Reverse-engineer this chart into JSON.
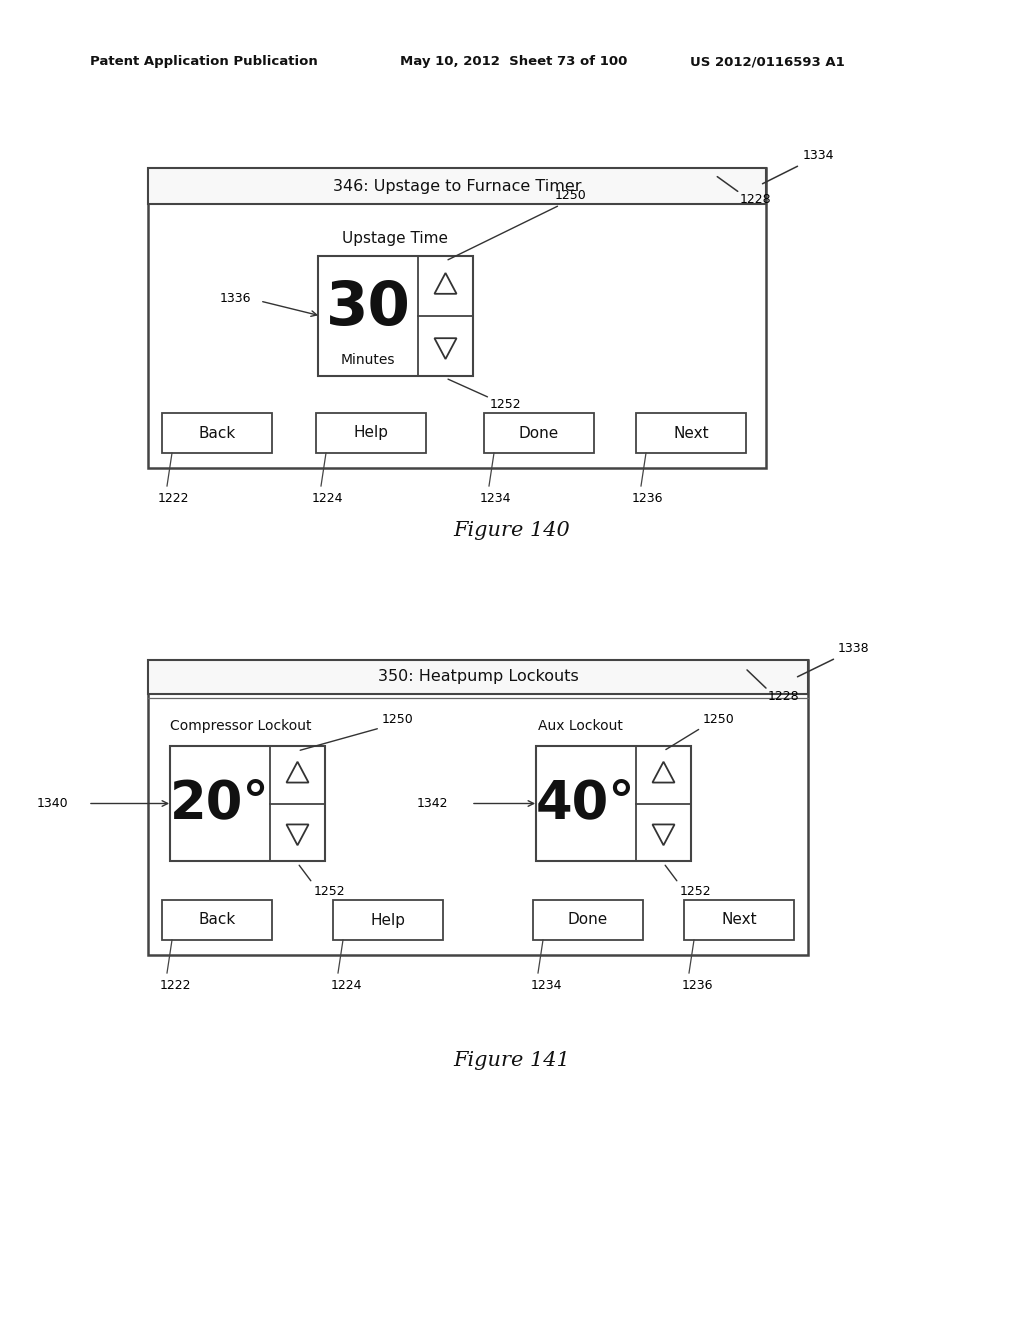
{
  "bg_color": "#ffffff",
  "header_line1": "Patent Application Publication",
  "header_line2": "May 10, 2012  Sheet 73 of 100",
  "header_line3": "US 2012/0116593 A1",
  "fig140_title": "346: Upstage to Furnace Timer",
  "fig140_label": "Figure 140",
  "fig140_upstage_time_label": "Upstage Time",
  "fig140_value": "30",
  "fig140_unit": "Minutes",
  "fig140_ref_1228": "1228",
  "fig140_ref_1334": "1334",
  "fig140_ref_1336": "1336",
  "fig140_ref_1250": "1250",
  "fig140_ref_1252": "1252",
  "fig140_ref_1222": "1222",
  "fig140_ref_1224": "1224",
  "fig140_ref_1234": "1234",
  "fig140_ref_1236": "1236",
  "fig140_buttons": [
    "Back",
    "Help",
    "Done",
    "Next"
  ],
  "fig141_title": "350: Heatpump Lockouts",
  "fig141_label": "Figure 141",
  "fig141_comp_label": "Compressor Lockout",
  "fig141_aux_label": "Aux Lockout",
  "fig141_comp_value": "20°",
  "fig141_aux_value": "40°",
  "fig141_ref_1228": "1228",
  "fig141_ref_1338": "1338",
  "fig141_ref_1340": "1340",
  "fig141_ref_1342": "1342",
  "fig141_ref_1250a": "1250",
  "fig141_ref_1250b": "1250",
  "fig141_ref_1252a": "1252",
  "fig141_ref_1252b": "1252",
  "fig141_ref_1222": "1222",
  "fig141_ref_1224": "1224",
  "fig141_ref_1234": "1234",
  "fig141_ref_1236": "1236",
  "fig141_buttons": [
    "Back",
    "Help",
    "Done",
    "Next"
  ]
}
